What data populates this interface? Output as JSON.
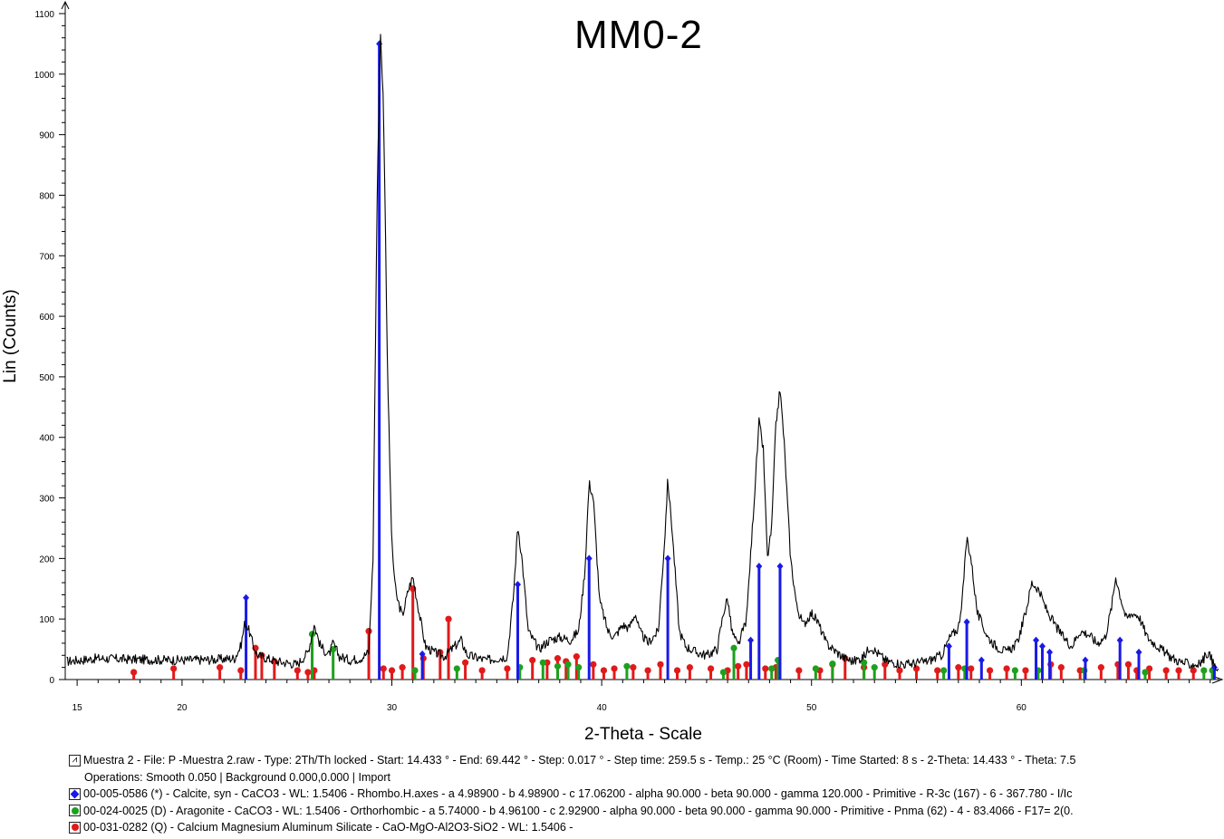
{
  "chart_data": {
    "type": "line",
    "title": "MM0-2",
    "xlabel": "2-Theta - Scale",
    "ylabel": "Lin (Counts)",
    "xlim": [
      14.433,
      69.442
    ],
    "ylim": [
      0,
      1100
    ],
    "xticks": [
      15,
      20,
      30,
      40,
      50,
      60
    ],
    "yticks": [
      0,
      100,
      200,
      300,
      400,
      500,
      600,
      700,
      800,
      900,
      1000,
      1100
    ],
    "grid": false,
    "legend_position": "bottom",
    "scan": {
      "name": "Muestra 2",
      "color": "#000000",
      "profile": [
        [
          14.5,
          30
        ],
        [
          16,
          35
        ],
        [
          18,
          33
        ],
        [
          20,
          32
        ],
        [
          21.5,
          33
        ],
        [
          22.5,
          35
        ],
        [
          22.8,
          55
        ],
        [
          23.0,
          95
        ],
        [
          23.2,
          80
        ],
        [
          23.4,
          55
        ],
        [
          23.6,
          40
        ],
        [
          24.5,
          30
        ],
        [
          25.5,
          25
        ],
        [
          26.0,
          45
        ],
        [
          26.3,
          90
        ],
        [
          26.6,
          55
        ],
        [
          27.0,
          40
        ],
        [
          27.2,
          60
        ],
        [
          27.5,
          38
        ],
        [
          28.0,
          32
        ],
        [
          28.5,
          35
        ],
        [
          28.9,
          45
        ],
        [
          29.1,
          200
        ],
        [
          29.3,
          800
        ],
        [
          29.45,
          1070
        ],
        [
          29.6,
          950
        ],
        [
          29.8,
          500
        ],
        [
          30.0,
          220
        ],
        [
          30.2,
          140
        ],
        [
          30.5,
          105
        ],
        [
          30.8,
          150
        ],
        [
          31.0,
          170
        ],
        [
          31.3,
          110
        ],
        [
          31.6,
          55
        ],
        [
          32.0,
          45
        ],
        [
          32.5,
          38
        ],
        [
          33.0,
          55
        ],
        [
          33.3,
          65
        ],
        [
          33.6,
          40
        ],
        [
          34.5,
          32
        ],
        [
          35.5,
          38
        ],
        [
          35.8,
          140
        ],
        [
          36.0,
          255
        ],
        [
          36.2,
          200
        ],
        [
          36.5,
          80
        ],
        [
          37.0,
          50
        ],
        [
          37.5,
          65
        ],
        [
          38.0,
          70
        ],
        [
          38.5,
          65
        ],
        [
          38.9,
          80
        ],
        [
          39.2,
          180
        ],
        [
          39.4,
          325
        ],
        [
          39.6,
          300
        ],
        [
          39.9,
          130
        ],
        [
          40.3,
          80
        ],
        [
          40.6,
          70
        ],
        [
          41.0,
          90
        ],
        [
          41.3,
          85
        ],
        [
          41.6,
          110
        ],
        [
          41.8,
          80
        ],
        [
          42.2,
          60
        ],
        [
          42.7,
          80
        ],
        [
          43.0,
          230
        ],
        [
          43.15,
          330
        ],
        [
          43.35,
          250
        ],
        [
          43.7,
          80
        ],
        [
          44.0,
          55
        ],
        [
          44.5,
          45
        ],
        [
          45.0,
          40
        ],
        [
          45.5,
          50
        ],
        [
          45.8,
          110
        ],
        [
          46.0,
          135
        ],
        [
          46.2,
          80
        ],
        [
          46.5,
          55
        ],
        [
          46.9,
          100
        ],
        [
          47.2,
          260
        ],
        [
          47.5,
          425
        ],
        [
          47.7,
          380
        ],
        [
          47.9,
          200
        ],
        [
          48.1,
          250
        ],
        [
          48.3,
          420
        ],
        [
          48.5,
          480
        ],
        [
          48.7,
          390
        ],
        [
          49.0,
          200
        ],
        [
          49.3,
          120
        ],
        [
          49.6,
          90
        ],
        [
          50.0,
          110
        ],
        [
          50.3,
          95
        ],
        [
          50.7,
          60
        ],
        [
          51.2,
          45
        ],
        [
          51.6,
          35
        ],
        [
          52.0,
          30
        ],
        [
          52.5,
          38
        ],
        [
          52.8,
          55
        ],
        [
          53.1,
          45
        ],
        [
          53.6,
          30
        ],
        [
          54.5,
          25
        ],
        [
          55.5,
          30
        ],
        [
          56.2,
          40
        ],
        [
          56.6,
          70
        ],
        [
          57.0,
          85
        ],
        [
          57.2,
          140
        ],
        [
          57.4,
          235
        ],
        [
          57.6,
          200
        ],
        [
          57.9,
          110
        ],
        [
          58.4,
          70
        ],
        [
          58.8,
          55
        ],
        [
          59.3,
          45
        ],
        [
          59.8,
          60
        ],
        [
          60.2,
          110
        ],
        [
          60.5,
          160
        ],
        [
          60.8,
          150
        ],
        [
          61.2,
          115
        ],
        [
          61.6,
          90
        ],
        [
          62.0,
          70
        ],
        [
          62.4,
          55
        ],
        [
          62.8,
          80
        ],
        [
          63.2,
          75
        ],
        [
          63.6,
          60
        ],
        [
          64.0,
          70
        ],
        [
          64.3,
          120
        ],
        [
          64.5,
          170
        ],
        [
          64.7,
          140
        ],
        [
          65.0,
          100
        ],
        [
          65.3,
          110
        ],
        [
          65.6,
          105
        ],
        [
          66.0,
          70
        ],
        [
          66.5,
          55
        ],
        [
          67.0,
          40
        ],
        [
          67.5,
          30
        ],
        [
          68.0,
          25
        ],
        [
          68.5,
          25
        ],
        [
          68.9,
          45
        ],
        [
          69.1,
          30
        ],
        [
          69.4,
          10
        ]
      ]
    },
    "series": [
      {
        "name": "00-005-0586 (*) - Calcite, syn - CaCO3",
        "color": "#1a1ae6",
        "marker": "diamond",
        "x": [
          23.05,
          29.4,
          31.45,
          36.0,
          39.4,
          43.15,
          47.1,
          47.5,
          48.5,
          56.55,
          57.4,
          58.1,
          60.7,
          61.0,
          61.35,
          63.05,
          64.7,
          65.6,
          69.2
        ],
        "y": [
          135,
          1050,
          42,
          157,
          200,
          200,
          65,
          187,
          187,
          55,
          95,
          32,
          65,
          55,
          45,
          32,
          65,
          45,
          20
        ]
      },
      {
        "name": "00-024-0025 (D) - Aragonite - CaCO3",
        "color": "#1ea01e",
        "marker": "circle",
        "x": [
          26.2,
          27.2,
          31.1,
          33.1,
          36.1,
          37.2,
          37.9,
          38.4,
          38.9,
          41.2,
          45.8,
          46.3,
          48.1,
          48.4,
          50.2,
          51.0,
          52.5,
          53.0,
          56.3,
          57.3,
          59.7,
          60.8,
          63.0,
          65.9,
          68.7,
          69.1
        ],
        "y": [
          75,
          50,
          15,
          18,
          20,
          28,
          22,
          25,
          20,
          22,
          12,
          52,
          18,
          32,
          18,
          26,
          28,
          20,
          15,
          18,
          15,
          15,
          15,
          12,
          15,
          15
        ]
      },
      {
        "name": "00-031-0282 (Q) - Calcium Magnesium Aluminum Silicate - CaO-MgO-Al2O3-SiO2",
        "color": "#e01a1a",
        "marker": "circle",
        "x": [
          17.7,
          19.6,
          21.8,
          22.8,
          23.5,
          23.8,
          24.4,
          25.5,
          26.0,
          26.3,
          28.9,
          29.6,
          30.0,
          30.5,
          31.0,
          31.5,
          32.3,
          32.7,
          33.5,
          34.3,
          35.5,
          36.7,
          37.4,
          37.9,
          38.3,
          38.8,
          39.6,
          40.1,
          40.6,
          41.5,
          42.2,
          42.8,
          43.6,
          44.2,
          45.2,
          46.0,
          46.5,
          46.9,
          47.8,
          48.3,
          49.4,
          50.4,
          51.0,
          51.6,
          52.5,
          53.5,
          54.2,
          55.0,
          56.0,
          57.0,
          57.6,
          58.5,
          59.3,
          60.2,
          61.4,
          61.9,
          62.8,
          63.8,
          64.6,
          65.1,
          65.5,
          66.1,
          66.9,
          67.5,
          68.2
        ],
        "y": [
          12,
          18,
          20,
          15,
          52,
          40,
          30,
          15,
          12,
          15,
          80,
          18,
          15,
          20,
          150,
          35,
          45,
          100,
          28,
          15,
          18,
          32,
          28,
          35,
          30,
          38,
          25,
          15,
          18,
          20,
          15,
          25,
          15,
          20,
          18,
          15,
          22,
          25,
          18,
          20,
          15,
          15,
          25,
          35,
          20,
          25,
          15,
          18,
          15,
          20,
          18,
          15,
          18,
          15,
          25,
          20,
          15,
          20,
          25,
          25,
          15,
          18,
          15,
          15,
          15
        ]
      }
    ]
  },
  "legend": {
    "scan_line1": "Muestra 2 - File: P -Muestra 2.raw - Type: 2Th/Th locked - Start: 14.433 ° - End: 69.442 ° - Step: 0.017 ° - Step time: 259.5 s - Temp.: 25 °C (Room) - Time Started: 8 s - 2-Theta: 14.433 ° - Theta: 7.5",
    "scan_line2": "Operations: Smooth 0.050 | Background 0.000,0.000 | Import",
    "calcite": "00-005-0586 (*) - Calcite, syn - CaCO3 - WL: 1.5406 - Rhombo.H.axes - a 4.98900 - b 4.98900 - c 17.06200 - alpha 90.000 - beta 90.000 - gamma 120.000 - Primitive - R-3c (167) - 6 - 367.780 - I/Ic",
    "aragonite": "00-024-0025 (D) - Aragonite - CaCO3 - WL: 1.5406 - Orthorhombic - a 5.74000 - b 4.96100 - c 2.92900 - alpha 90.000 - beta 90.000 - gamma 90.000 - Primitive - Pnma (62) - 4 - 83.4066 - F17= 2(0.",
    "silicate": "00-031-0282 (Q) - Calcium Magnesium Aluminum Silicate - CaO-MgO-Al2O3-SiO2 - WL: 1.5406 -"
  },
  "icons": {
    "scan": "scan-line-icon",
    "calcite": "blue-diamond-marker-icon",
    "aragonite": "green-circle-marker-icon",
    "silicate": "red-circle-marker-icon"
  }
}
